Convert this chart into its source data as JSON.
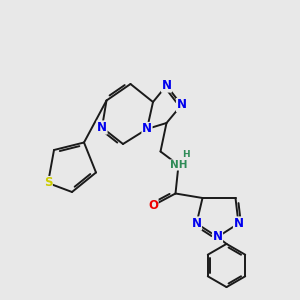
{
  "bg": "#e8e8e8",
  "bond_color": "#1a1a1a",
  "lw": 1.4,
  "atom_colors": {
    "N": "#0000ee",
    "S": "#cccc00",
    "O": "#ee0000",
    "H_color": "#2e8b57",
    "C": "#1a1a1a"
  },
  "fs": 7.5
}
